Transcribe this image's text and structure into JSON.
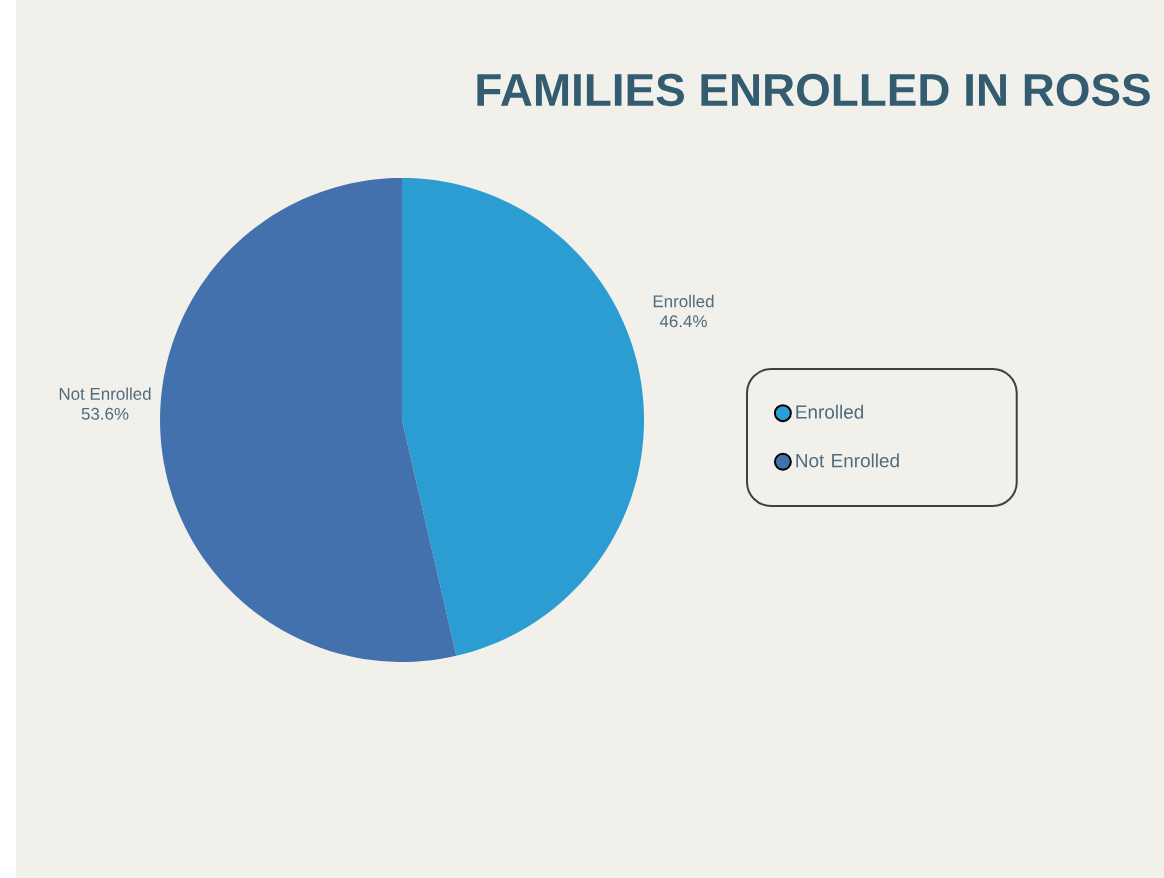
{
  "chart_data": {
    "type": "pie",
    "title": "FAMILIES  ENROLLED IN ROSS",
    "categories": [
      "Enrolled",
      "Not Enrolled"
    ],
    "values": [
      46.4,
      53.6
    ],
    "colors": [
      "#2b9dd3",
      "#4271ad"
    ],
    "value_labels": [
      "46.4%",
      "53.6%"
    ],
    "legend": "right"
  }
}
